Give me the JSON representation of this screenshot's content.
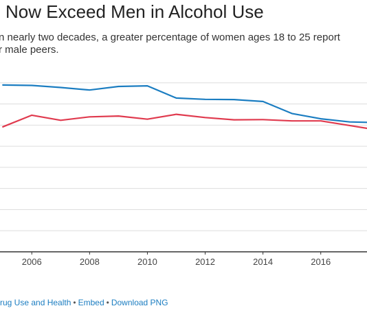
{
  "header": {
    "title": "Now Exceed Men in Alcohol Use",
    "subtitle_line1": "n nearly two decades, a greater percentage of women ages 18 to 25 report",
    "subtitle_line2": "r male peers."
  },
  "footer": {
    "source_text": "rug Use and Health",
    "separator": "•",
    "embed_label": "Embed",
    "download_label": "Download PNG"
  },
  "colors": {
    "men": "#1b7dc1",
    "women": "#e03a4e",
    "grid": "#dddddd",
    "axis": "#333333",
    "tick_text": "#444444"
  },
  "chart_data": {
    "type": "line",
    "x_ticks": [
      "2006",
      "2008",
      "2010",
      "2012",
      "2014",
      "2016"
    ],
    "x_range": [
      2004.9,
      2017.6
    ],
    "y_range": [
      0,
      9
    ],
    "grid": true,
    "series": [
      {
        "color_key": "men",
        "x": [
          2005,
          2006,
          2007,
          2008,
          2009,
          2010,
          2011,
          2012,
          2013,
          2014,
          2015,
          2016,
          2017,
          2017.6
        ],
        "values": [
          7.9,
          7.88,
          7.78,
          7.66,
          7.83,
          7.86,
          7.28,
          7.22,
          7.21,
          7.12,
          6.55,
          6.3,
          6.15,
          6.13
        ]
      },
      {
        "color_key": "women",
        "x": [
          2005,
          2006,
          2007,
          2008,
          2009,
          2010,
          2011,
          2012,
          2013,
          2014,
          2015,
          2016,
          2017,
          2017.6
        ],
        "values": [
          5.92,
          6.47,
          6.23,
          6.39,
          6.43,
          6.28,
          6.51,
          6.36,
          6.25,
          6.26,
          6.2,
          6.2,
          5.98,
          5.85
        ]
      }
    ]
  }
}
